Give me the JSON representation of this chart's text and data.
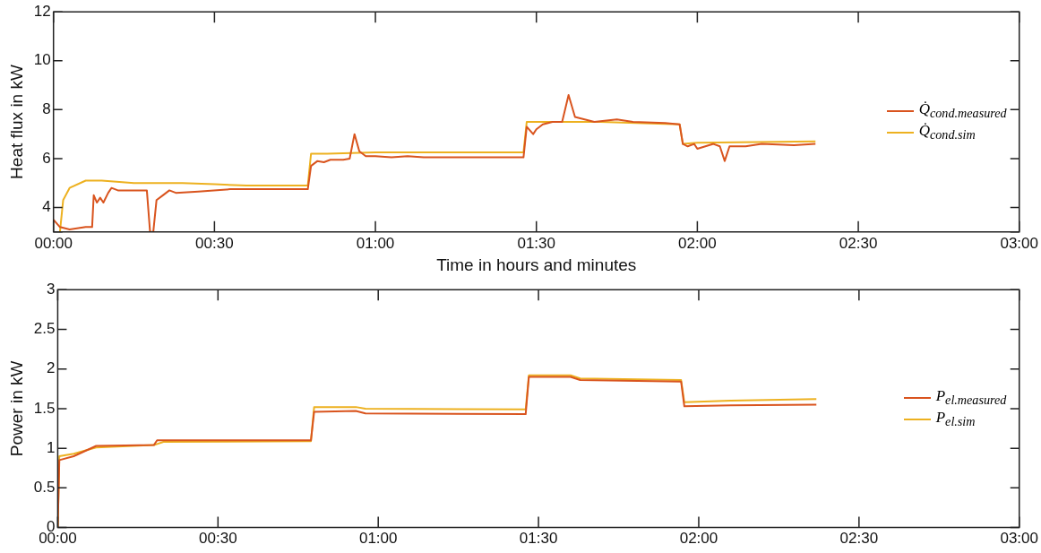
{
  "chart_data": [
    {
      "type": "line",
      "xlabel": "Time in hours and minutes",
      "ylabel": "Heat flux in kW",
      "legend": "right",
      "grid": false,
      "marker": "none",
      "line_style": "solid",
      "xlim": [
        0,
        3
      ],
      "xticks": [
        {
          "value": 0,
          "label": "00:00"
        },
        {
          "value": 0.5,
          "label": "00:30"
        },
        {
          "value": 1,
          "label": "01:00"
        },
        {
          "value": 1.5,
          "label": "01:30"
        },
        {
          "value": 2,
          "label": "02:00"
        },
        {
          "value": 2.5,
          "label": "02:30"
        },
        {
          "value": 3,
          "label": "03:00"
        }
      ],
      "ylim": [
        3,
        12
      ],
      "yticks": [
        {
          "value": 3,
          "label": null
        },
        4,
        6,
        8,
        10,
        12
      ],
      "series": [
        {
          "name": "Q̇$_{cond.measured}$",
          "color": "#d9541e",
          "x": [
            0,
            0.02,
            0.05,
            0.1,
            0.12,
            0.125,
            0.135,
            0.145,
            0.155,
            0.17,
            0.18,
            0.2,
            0.25,
            0.29,
            0.3,
            0.31,
            0.32,
            0.34,
            0.36,
            0.38,
            0.45,
            0.55,
            0.7,
            0.79,
            0.8,
            0.82,
            0.84,
            0.86,
            0.9,
            0.92,
            0.935,
            0.95,
            0.97,
            1.0,
            1.05,
            1.1,
            1.15,
            1.3,
            1.46,
            1.47,
            1.49,
            1.5,
            1.52,
            1.55,
            1.58,
            1.6,
            1.62,
            1.65,
            1.68,
            1.75,
            1.8,
            1.9,
            1.945,
            1.955,
            1.97,
            1.99,
            2.0,
            2.05,
            2.07,
            2.085,
            2.1,
            2.15,
            2.2,
            2.3,
            2.367
          ],
          "values": [
            3.5,
            3.2,
            3.1,
            3.2,
            3.2,
            4.5,
            4.2,
            4.4,
            4.2,
            4.6,
            4.8,
            4.7,
            4.7,
            4.7,
            3.0,
            3.0,
            4.3,
            4.5,
            4.7,
            4.6,
            4.65,
            4.75,
            4.75,
            4.75,
            5.7,
            5.9,
            5.85,
            5.95,
            5.95,
            6.0,
            7.0,
            6.3,
            6.1,
            6.1,
            6.05,
            6.1,
            6.05,
            6.05,
            6.05,
            7.3,
            7.0,
            7.2,
            7.4,
            7.5,
            7.5,
            8.6,
            7.7,
            7.6,
            7.5,
            7.6,
            7.5,
            7.45,
            7.4,
            6.6,
            6.5,
            6.6,
            6.4,
            6.6,
            6.5,
            5.9,
            6.5,
            6.5,
            6.6,
            6.55,
            6.6
          ]
        },
        {
          "name": "Q̇$_{cond.sim}$",
          "color": "#edb120",
          "x": [
            0.02,
            0.03,
            0.05,
            0.1,
            0.15,
            0.25,
            0.4,
            0.5,
            0.6,
            0.79,
            0.8,
            0.85,
            1.0,
            1.46,
            1.47,
            1.7,
            1.945,
            1.955,
            2.0,
            2.367
          ],
          "values": [
            3.0,
            4.3,
            4.8,
            5.1,
            5.1,
            5.0,
            5.0,
            4.95,
            4.9,
            4.9,
            6.2,
            6.2,
            6.25,
            6.25,
            7.5,
            7.5,
            7.4,
            6.6,
            6.65,
            6.7
          ]
        }
      ]
    },
    {
      "type": "line",
      "ylabel": "Power in kW",
      "legend": "right",
      "grid": false,
      "marker": "none",
      "line_style": "solid",
      "xlim": [
        0,
        3
      ],
      "xticks": [
        {
          "value": 0,
          "label": "00:00"
        },
        {
          "value": 0.5,
          "label": "00:30"
        },
        {
          "value": 1,
          "label": "01:00"
        },
        {
          "value": 1.5,
          "label": "01:30"
        },
        {
          "value": 2,
          "label": "02:00"
        },
        {
          "value": 2.5,
          "label": "02:30"
        },
        {
          "value": 3,
          "label": "03:00"
        }
      ],
      "ylim": [
        0,
        3
      ],
      "yticks": [
        0,
        0.5,
        1,
        1.5,
        2,
        2.5,
        3
      ],
      "series": [
        {
          "name": "P$_{el.measured}$",
          "color": "#d9541e",
          "x": [
            0,
            0.005,
            0.05,
            0.12,
            0.3,
            0.31,
            0.5,
            0.79,
            0.8,
            0.93,
            0.96,
            1.46,
            1.47,
            1.6,
            1.63,
            1.945,
            1.955,
            2.1,
            2.367
          ],
          "values": [
            0,
            0.85,
            0.9,
            1.03,
            1.04,
            1.1,
            1.1,
            1.1,
            1.46,
            1.47,
            1.44,
            1.43,
            1.9,
            1.9,
            1.86,
            1.84,
            1.53,
            1.54,
            1.55
          ]
        },
        {
          "name": "P$_{el.sim}$",
          "color": "#edb120",
          "x": [
            0,
            0.005,
            0.05,
            0.12,
            0.3,
            0.33,
            0.79,
            0.8,
            0.93,
            0.96,
            1.46,
            1.47,
            1.6,
            1.63,
            1.945,
            1.955,
            2.1,
            2.367
          ],
          "values": [
            0,
            0.9,
            0.93,
            1.01,
            1.04,
            1.08,
            1.09,
            1.52,
            1.52,
            1.5,
            1.49,
            1.92,
            1.92,
            1.88,
            1.86,
            1.58,
            1.6,
            1.62
          ]
        }
      ]
    }
  ]
}
